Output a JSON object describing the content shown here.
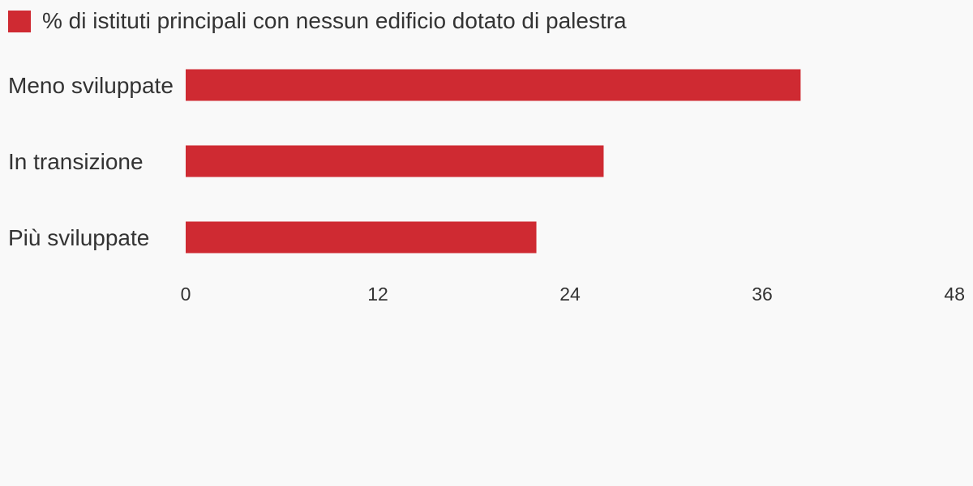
{
  "legend": {
    "label": "% di istituti principali con nessun edificio dotato di palestra",
    "color": "#cf2a32"
  },
  "chart_data": {
    "type": "bar",
    "orientation": "horizontal",
    "title": "",
    "xlabel": "",
    "ylabel": "",
    "categories": [
      "Meno sviluppate",
      "In transizione",
      "Più sviluppate"
    ],
    "series": [
      {
        "name": "% di istituti principali con nessun edificio dotato di palestra",
        "values": [
          38.4,
          26.1,
          21.9
        ],
        "color": "#cf2a32"
      }
    ],
    "xlim": [
      0,
      48
    ],
    "xticks": [
      0,
      12,
      24,
      36,
      48
    ],
    "grid": false,
    "legend_position": "top-left"
  }
}
